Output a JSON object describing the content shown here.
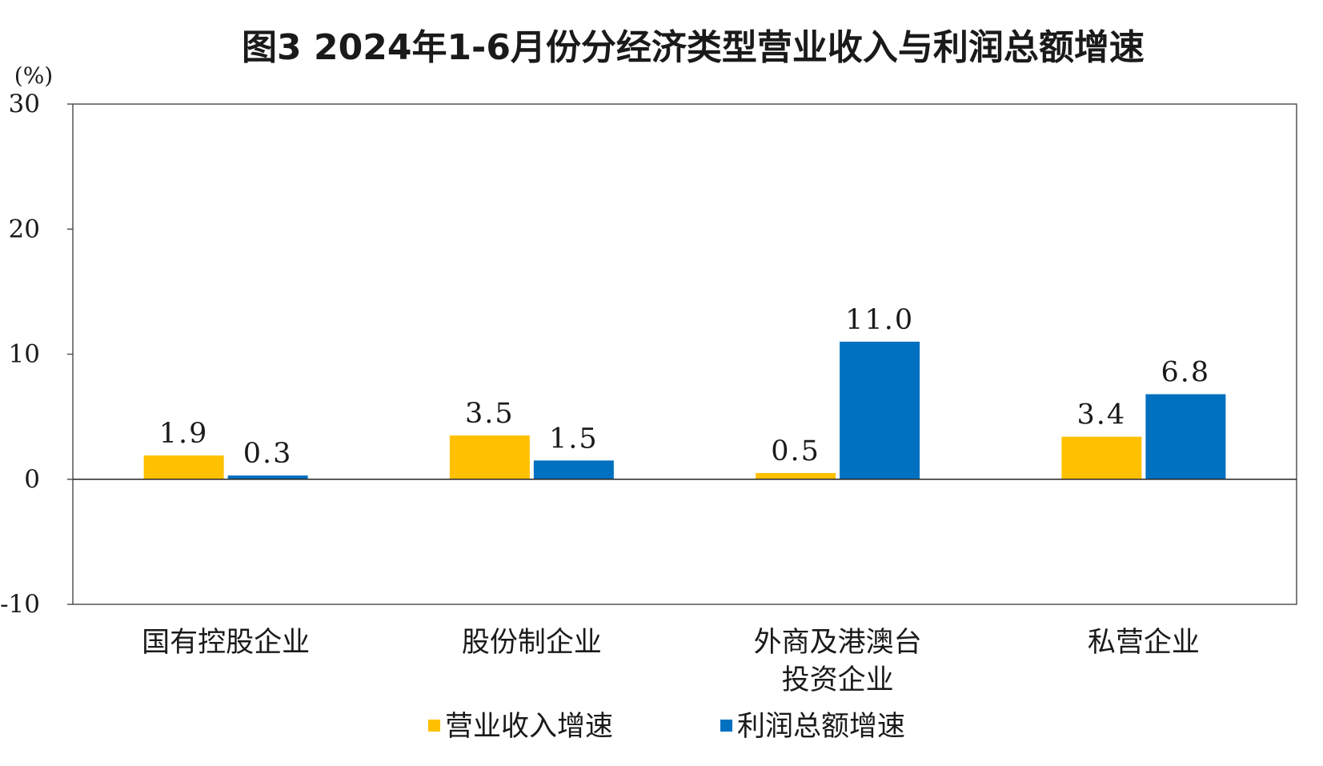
{
  "chart_data": {
    "type": "bar",
    "title": "图3 2024年1-6月份分经济类型营业收入与利润总额增速",
    "unit_label": "(%)",
    "categories": [
      [
        "国有控股企业"
      ],
      [
        "股份制企业"
      ],
      [
        "外商及港澳台",
        "投资企业"
      ],
      [
        "私营企业"
      ]
    ],
    "series": [
      {
        "name": "营业收入增速",
        "color": "#FFC000",
        "values": [
          1.9,
          3.5,
          0.5,
          3.4
        ]
      },
      {
        "name": "利润总额增速",
        "color": "#0070C0",
        "values": [
          0.3,
          1.5,
          11.0,
          6.8
        ]
      }
    ],
    "ylim": [
      -10,
      30
    ],
    "yticks": [
      "30",
      "20",
      "10",
      "0",
      "-10"
    ],
    "data_labels": [
      [
        "1.9",
        "3.5",
        "0.5",
        "3.4"
      ],
      [
        "0.3",
        "1.5",
        "11.0",
        "6.8"
      ]
    ],
    "legend_position": "bottom-center",
    "grid": false
  }
}
